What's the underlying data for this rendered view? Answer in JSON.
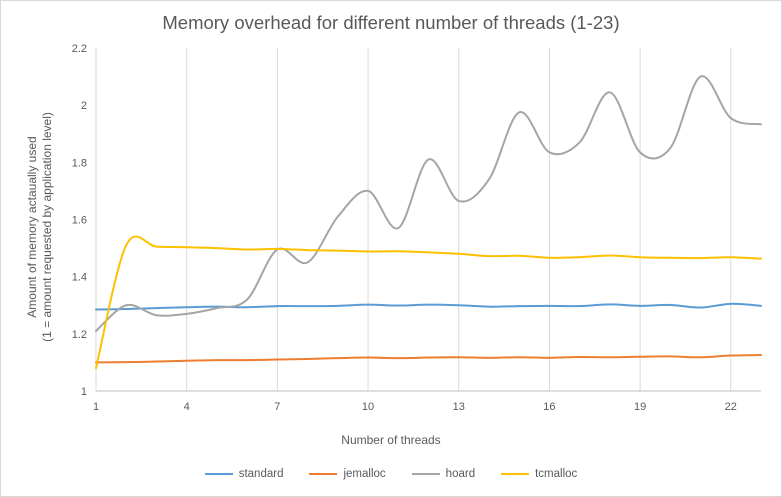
{
  "chart_data": {
    "type": "line",
    "title": "Memory overhead for different number of threads (1-23)",
    "xlabel": "Number of threads",
    "ylabel_line1": "Amount of memory actaually used",
    "ylabel_line2": "(1 = amount requested by application level)",
    "x": [
      1,
      2,
      3,
      4,
      5,
      6,
      7,
      8,
      9,
      10,
      11,
      12,
      13,
      14,
      15,
      16,
      17,
      18,
      19,
      20,
      21,
      22,
      23
    ],
    "x_ticks": [
      1,
      4,
      7,
      10,
      13,
      16,
      19,
      22
    ],
    "y_ticks": [
      1,
      1.2,
      1.4,
      1.6,
      1.8,
      2,
      2.2
    ],
    "y_tick_labels": [
      "1",
      "1.2",
      "1.4",
      "1.6",
      "1.8",
      "2",
      "2.2"
    ],
    "x_tick_labels": [
      "1",
      "4",
      "7",
      "10",
      "13",
      "16",
      "19",
      "22"
    ],
    "xlim": [
      1,
      23
    ],
    "ylim": [
      1,
      2.2
    ],
    "grid": "vertical",
    "legend": "bottom",
    "series": [
      {
        "name": "standard",
        "color": "#5b9bd5",
        "values": [
          1.285,
          1.287,
          1.29,
          1.293,
          1.295,
          1.293,
          1.297,
          1.297,
          1.298,
          1.302,
          1.299,
          1.302,
          1.3,
          1.295,
          1.297,
          1.298,
          1.297,
          1.303,
          1.298,
          1.301,
          1.292,
          1.305,
          1.298
        ]
      },
      {
        "name": "jemalloc",
        "color": "#ed7d31",
        "values": [
          1.1,
          1.101,
          1.103,
          1.106,
          1.108,
          1.108,
          1.11,
          1.112,
          1.115,
          1.117,
          1.115,
          1.117,
          1.118,
          1.116,
          1.118,
          1.116,
          1.119,
          1.118,
          1.12,
          1.121,
          1.118,
          1.124,
          1.126
        ]
      },
      {
        "name": "hoard",
        "color": "#a5a5a5",
        "values": [
          1.21,
          1.3,
          1.265,
          1.27,
          1.29,
          1.32,
          1.495,
          1.45,
          1.61,
          1.7,
          1.57,
          1.81,
          1.665,
          1.74,
          1.975,
          1.835,
          1.87,
          2.045,
          1.835,
          1.85,
          2.1,
          1.955,
          1.933
        ]
      },
      {
        "name": "tcmalloc",
        "color": "#ffc000",
        "values": [
          1.08,
          1.51,
          1.505,
          1.503,
          1.5,
          1.495,
          1.497,
          1.493,
          1.491,
          1.488,
          1.489,
          1.485,
          1.48,
          1.472,
          1.473,
          1.466,
          1.468,
          1.474,
          1.468,
          1.466,
          1.465,
          1.468,
          1.463
        ]
      }
    ]
  }
}
